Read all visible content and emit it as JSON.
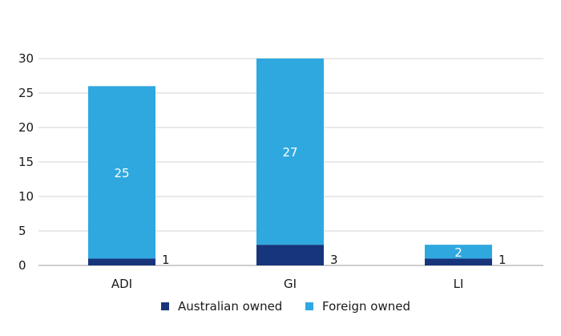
{
  "chart_data": {
    "type": "bar",
    "stacked": true,
    "categories": [
      "ADI",
      "GI",
      "LI"
    ],
    "series": [
      {
        "name": "Australian owned",
        "values": [
          1,
          3,
          1
        ],
        "color": "#17357a",
        "label_position": "outside-right"
      },
      {
        "name": "Foreign owned",
        "values": [
          25,
          27,
          2
        ],
        "color": "#2fa8e0",
        "label_position": "inside"
      }
    ],
    "ylim": [
      0,
      30
    ],
    "yticks": [
      0,
      5,
      10,
      15,
      20,
      25,
      30
    ],
    "grid": true,
    "gridline_color": "#d3d3d3",
    "legend": "bottom"
  }
}
